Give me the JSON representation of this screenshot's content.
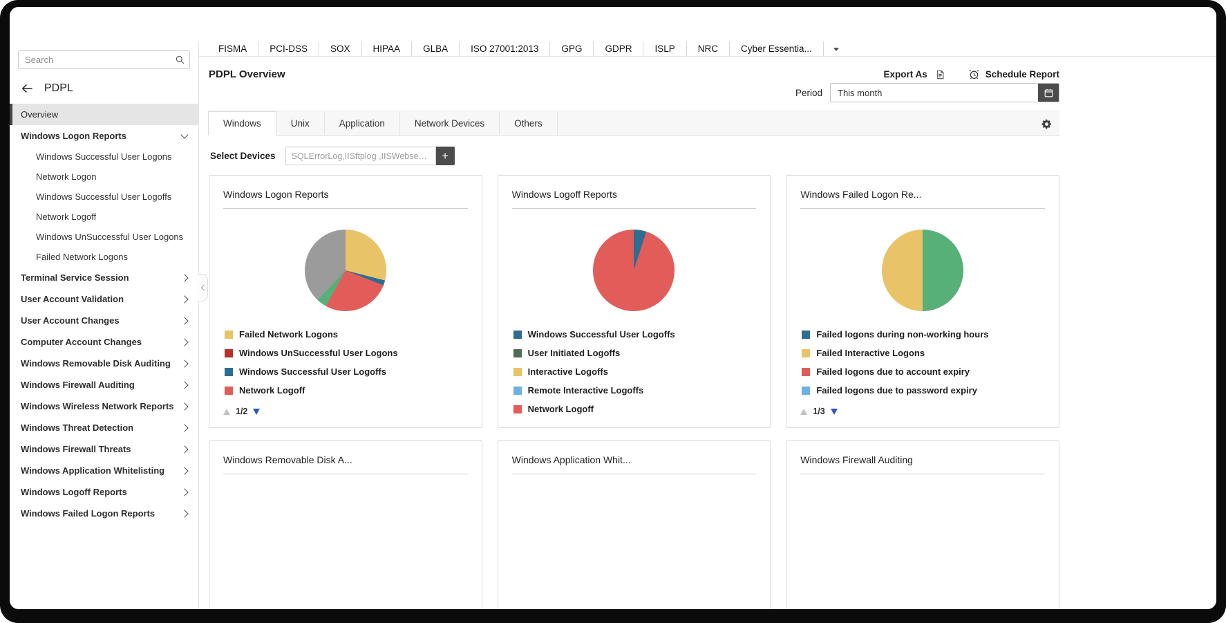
{
  "colors": {
    "accent_blue": "#2b57c8",
    "yellow": "#e8c368",
    "red": "#e25c5a",
    "dark_red": "#b5302a",
    "steel_blue": "#2e6d92",
    "light_blue": "#6cb1df",
    "green": "#57b077",
    "dark_green": "#4f6b58",
    "gray": "#9b9b9b",
    "selected_item_bg": "#e5e5e5",
    "dark_button": "#4c4c4c"
  },
  "icons": {
    "search": "magnifier",
    "back": "arrow-left",
    "parent_collapsed": "chevron-right",
    "parent_expanded": "chevron-down",
    "compliance_more": "caret-down",
    "export": "document",
    "schedule": "alarm-clock",
    "period": "calendar",
    "settings": "gear",
    "add_device": "plus",
    "page_up": "triangle-up",
    "page_down": "triangle-down",
    "sidebar_collapse": "chevron-left"
  },
  "sidebar": {
    "search": {
      "placeholder": "Search"
    },
    "back_title": "PDPL",
    "items": [
      {
        "label": "Overview",
        "type": "leaf",
        "selected": true
      },
      {
        "label": "Windows Logon Reports",
        "type": "parent",
        "expanded": true
      },
      {
        "label": "Windows Successful User Logons",
        "type": "child"
      },
      {
        "label": "Network Logon",
        "type": "child"
      },
      {
        "label": "Windows Successful User Logoffs",
        "type": "child"
      },
      {
        "label": "Network Logoff",
        "type": "child"
      },
      {
        "label": "Windows UnSuccessful User Logons",
        "type": "child"
      },
      {
        "label": "Failed Network Logons",
        "type": "child"
      },
      {
        "label": "Terminal Service Session",
        "type": "parent"
      },
      {
        "label": "User Account Validation",
        "type": "parent"
      },
      {
        "label": "User Account Changes",
        "type": "parent"
      },
      {
        "label": "Computer Account Changes",
        "type": "parent"
      },
      {
        "label": "Windows Removable Disk Auditing",
        "type": "parent"
      },
      {
        "label": "Windows Firewall Auditing",
        "type": "parent"
      },
      {
        "label": "Windows Wireless Network Reports",
        "type": "parent"
      },
      {
        "label": "Windows Threat Detection",
        "type": "parent"
      },
      {
        "label": "Windows Firewall Threats",
        "type": "parent"
      },
      {
        "label": "Windows Application Whitelisting",
        "type": "parent"
      },
      {
        "label": "Windows Logoff Reports",
        "type": "parent"
      },
      {
        "label": "Windows Failed Logon Reports",
        "type": "parent"
      }
    ]
  },
  "compliance_bar": {
    "tabs": [
      "FISMA",
      "PCI-DSS",
      "SOX",
      "HIPAA",
      "GLBA",
      "ISO 27001:2013",
      "GPG",
      "GDPR",
      "ISLP",
      "NRC",
      "Cyber Essentia..."
    ]
  },
  "header": {
    "title": "PDPL Overview",
    "export_as": "Export As",
    "schedule_report": "Schedule Report"
  },
  "period": {
    "label": "Period",
    "value": "This month"
  },
  "view_tabs": {
    "tabs": [
      {
        "label": "Windows",
        "active": true
      },
      {
        "label": "Unix",
        "active": false
      },
      {
        "label": "Application",
        "active": false
      },
      {
        "label": "Network Devices",
        "active": false
      },
      {
        "label": "Others",
        "active": false
      }
    ]
  },
  "select_devices": {
    "label": "Select Devices",
    "value": "SQLErrorLog,IISftplog ,IISWebserver ...",
    "add_button": "+"
  },
  "cards": [
    {
      "title": "Windows Logon Reports",
      "legend": [
        {
          "label": "Failed Network Logons",
          "color": "#e8c368"
        },
        {
          "label": "Windows UnSuccessful User Logons",
          "color": "#b5302a"
        },
        {
          "label": "Windows Successful User Logoffs",
          "color": "#2e6d92"
        },
        {
          "label": "Network Logoff",
          "color": "#e25c5a"
        }
      ],
      "pager": {
        "page": "1/2"
      }
    },
    {
      "title": "Windows Logoff Reports",
      "legend": [
        {
          "label": "Windows Successful User Logoffs",
          "color": "#2e6d92"
        },
        {
          "label": "User Initiated Logoffs",
          "color": "#4f6b58"
        },
        {
          "label": "Interactive Logoffs",
          "color": "#e8c368"
        },
        {
          "label": "Remote Interactive Logoffs",
          "color": "#6cb1df"
        },
        {
          "label": "Network Logoff",
          "color": "#e25c5a"
        }
      ],
      "pager": null
    },
    {
      "title": "Windows Failed Logon Re...",
      "legend": [
        {
          "label": "Failed logons during non-working hours",
          "color": "#2e6d92"
        },
        {
          "label": "Failed Interactive Logons",
          "color": "#e8c368"
        },
        {
          "label": "Failed logons due to account expiry",
          "color": "#e25c5a"
        },
        {
          "label": "Failed logons due to password expiry",
          "color": "#6cb1df"
        }
      ],
      "pager": {
        "page": "1/3"
      }
    }
  ],
  "bottom_cards": [
    {
      "title": "Windows Removable Disk A..."
    },
    {
      "title": "Windows Application Whit..."
    },
    {
      "title": "Windows Firewall Auditing"
    }
  ],
  "chart_data": [
    {
      "type": "pie",
      "title": "Windows Logon Reports",
      "slices": [
        {
          "label": "Failed Network Logons",
          "color": "#e8c368",
          "pct": 29
        },
        {
          "label": "Windows Successful User Logoffs",
          "color": "#2e6d92",
          "pct": 2
        },
        {
          "label": "Network Logoff",
          "color": "#e25c5a",
          "pct": 27
        },
        {
          "label": "",
          "color": "#57b077",
          "pct": 4
        },
        {
          "label": "",
          "color": "#9b9b9b",
          "pct": 38
        }
      ]
    },
    {
      "type": "pie",
      "title": "Windows Logoff Reports",
      "slices": [
        {
          "label": "Windows Successful User Logoffs",
          "color": "#2e6d92",
          "pct": 5
        },
        {
          "label": "Network Logoff",
          "color": "#e25c5a",
          "pct": 95
        }
      ]
    },
    {
      "type": "pie",
      "title": "Windows Failed Logon Re...",
      "slices": [
        {
          "label": "",
          "color": "#57b077",
          "pct": 50
        },
        {
          "label": "Failed Interactive Logons",
          "color": "#e8c368",
          "pct": 50
        }
      ]
    }
  ]
}
